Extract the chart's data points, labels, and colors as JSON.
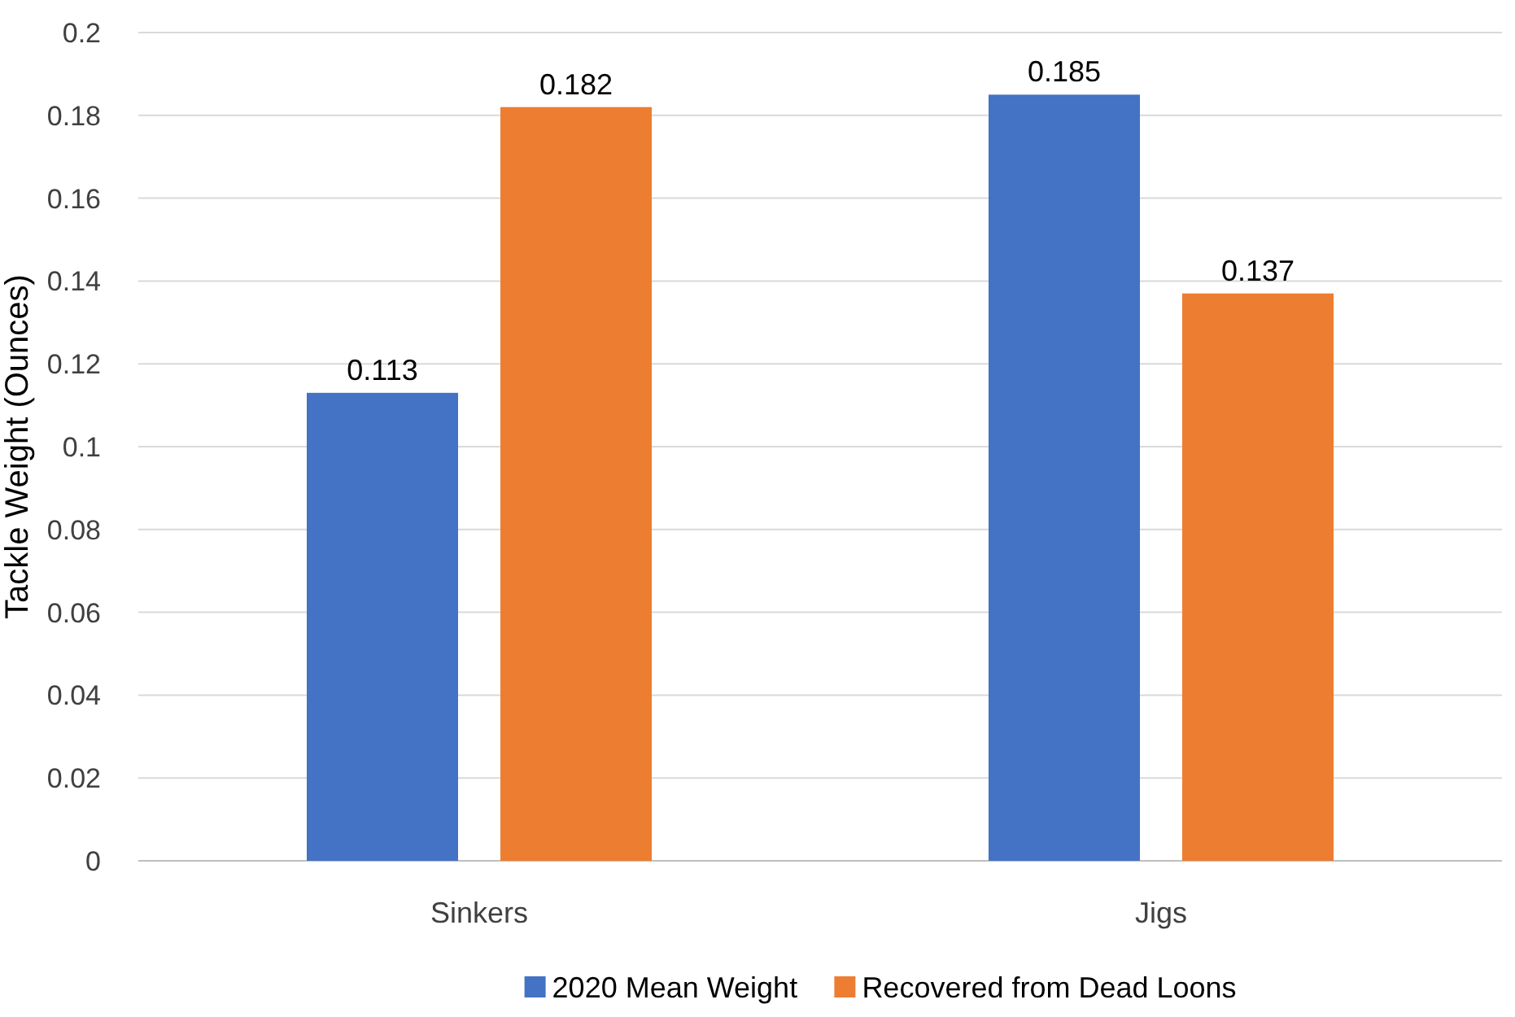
{
  "chart_data": {
    "type": "bar",
    "ylabel": "Tackle Weight (Ounces)",
    "categories": [
      "Sinkers",
      "Jigs"
    ],
    "series": [
      {
        "name": "2020 Mean Weight",
        "color": "#4472c4",
        "values": [
          0.113,
          0.185
        ]
      },
      {
        "name": "Recovered from Dead Loons",
        "color": "#ed7d31",
        "values": [
          0.182,
          0.137
        ]
      }
    ],
    "ylim": [
      0,
      0.2
    ],
    "yticks": [
      0,
      0.02,
      0.04,
      0.06,
      0.08,
      0.1,
      0.12,
      0.14,
      0.16,
      0.18,
      0.2
    ],
    "grid": "y",
    "legend": "bottom",
    "data_labels": true
  }
}
